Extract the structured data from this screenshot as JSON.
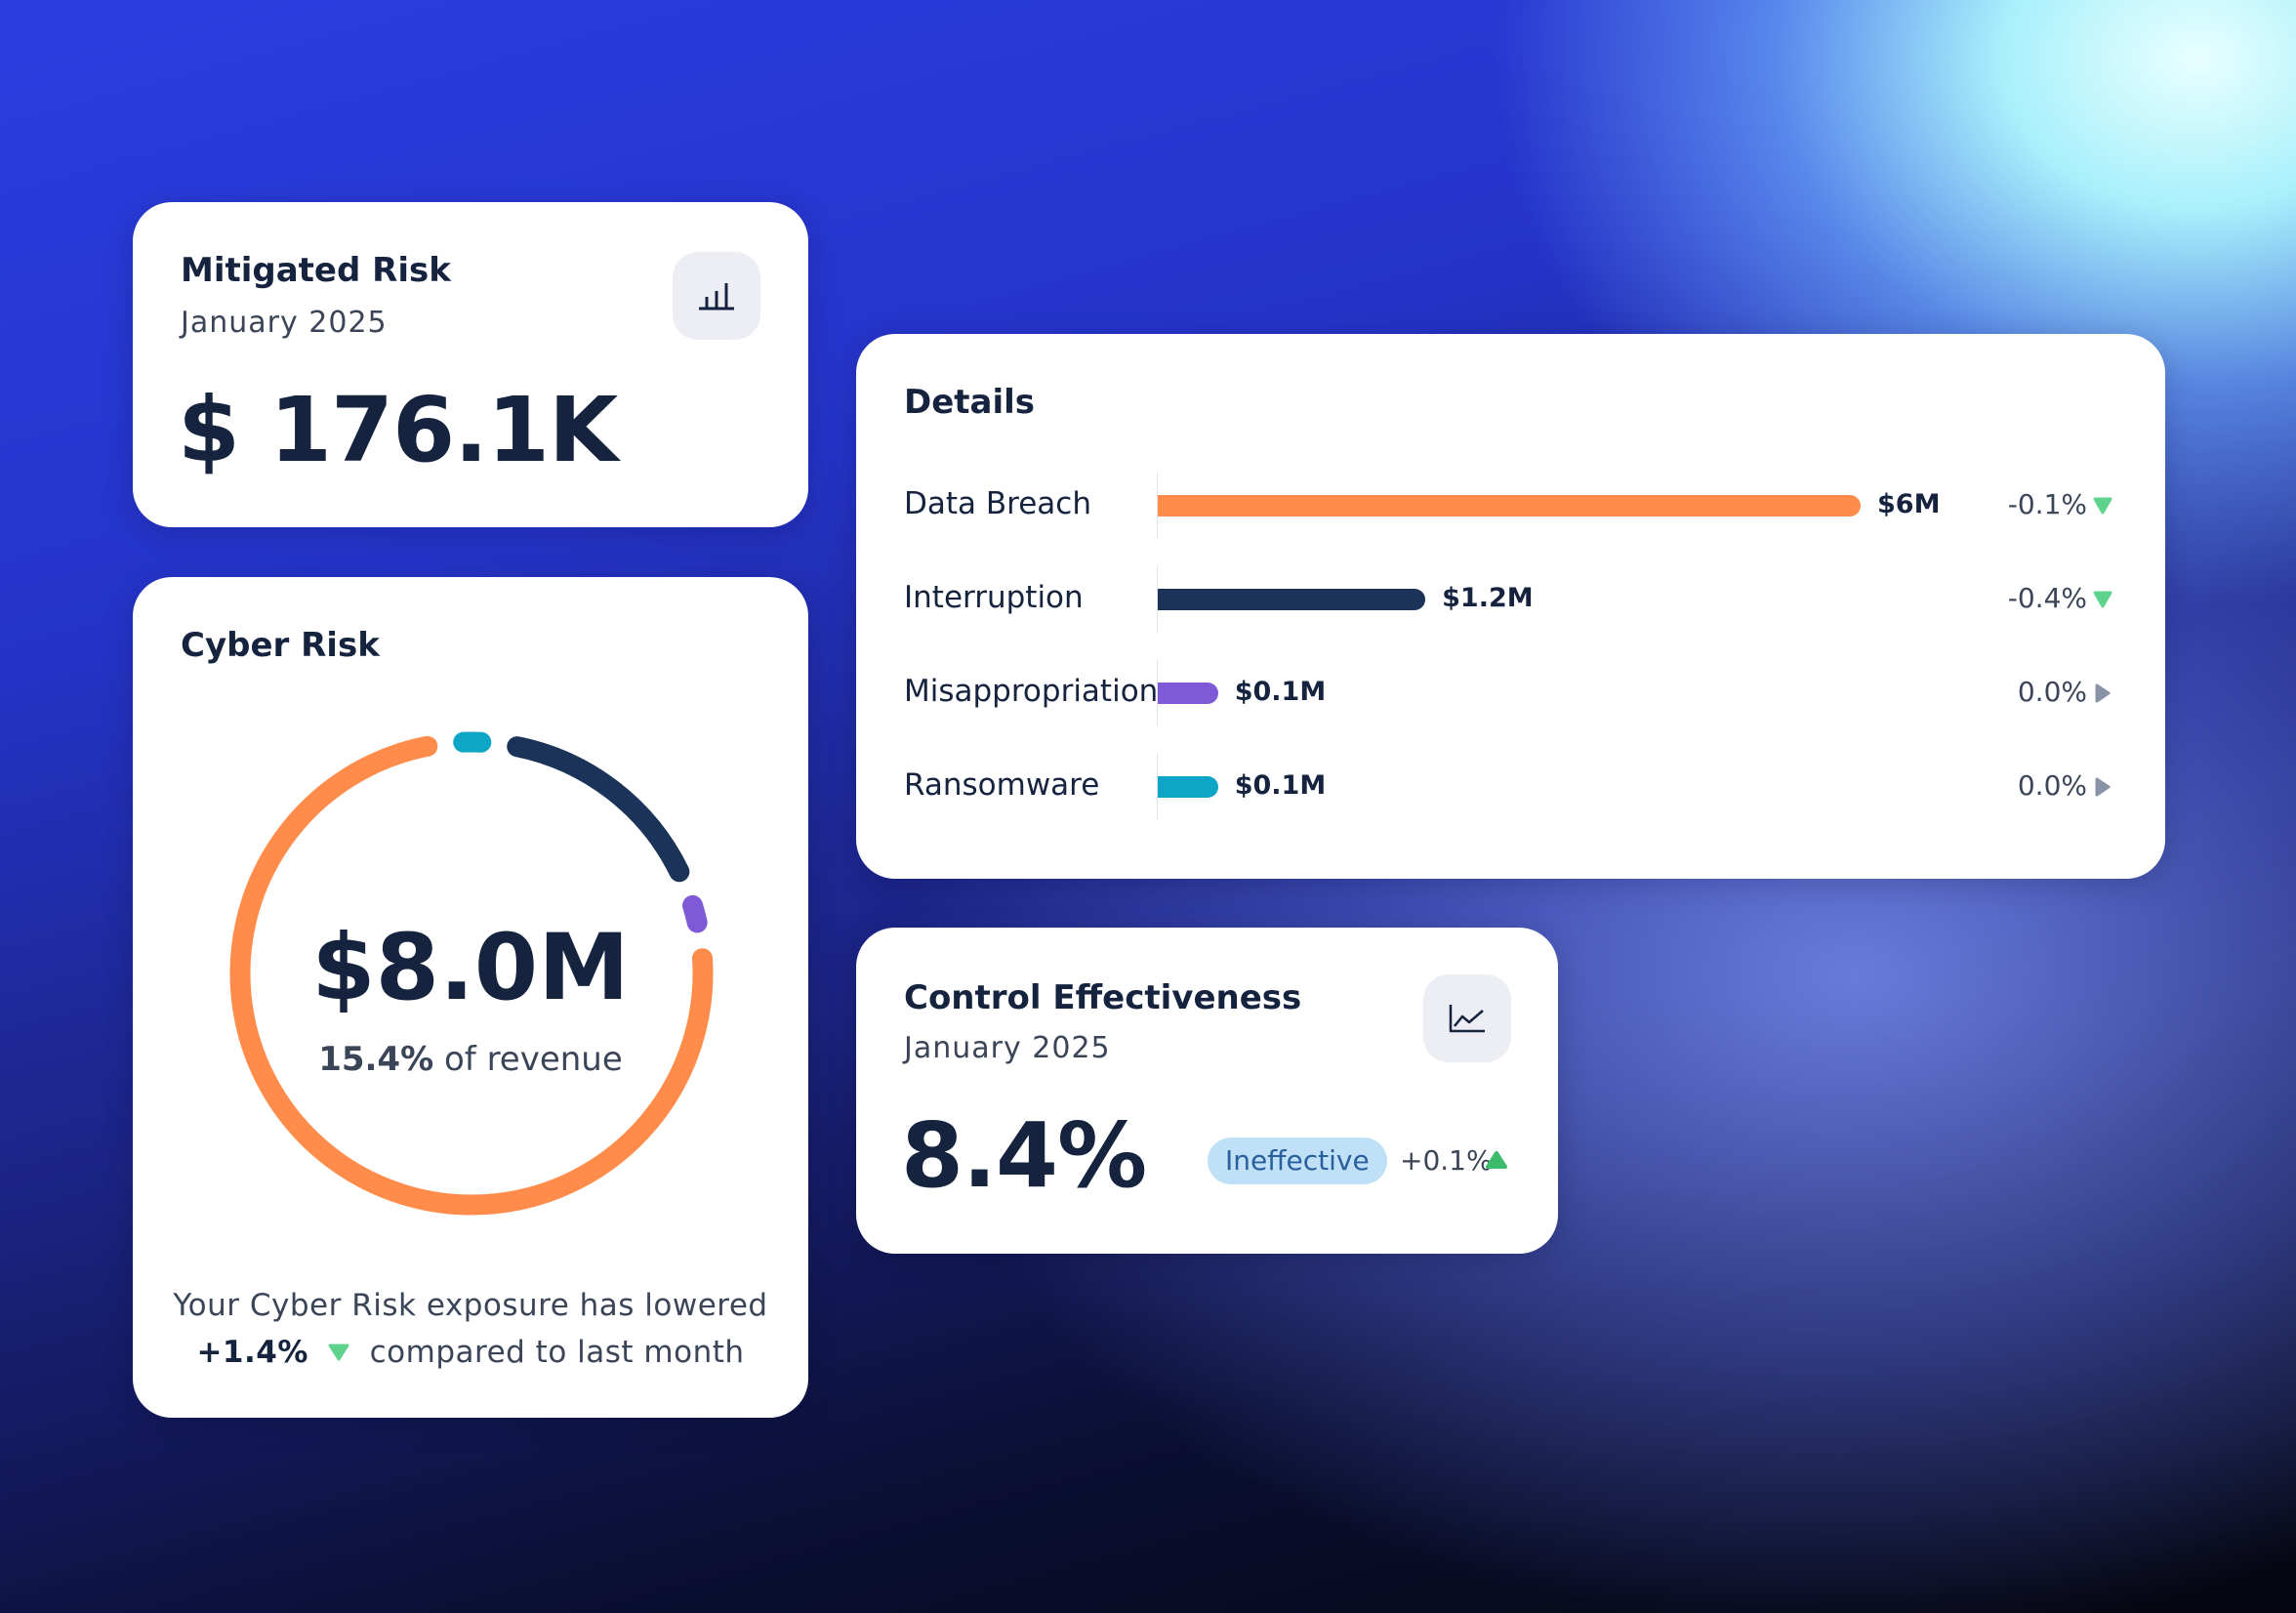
{
  "mitigated_risk": {
    "title": "Mitigated Risk",
    "subtitle": "January 2025",
    "value": "$ 176.1K",
    "icon": "bar-chart-icon"
  },
  "cyber_risk": {
    "title": "Cyber Risk",
    "total": "$8.0M",
    "percent_of_revenue": "15.4%",
    "of_revenue_label": "of revenue",
    "footer_line1": "Your Cyber Risk exposure has lowered",
    "footer_change": "+1.4%",
    "footer_line2": "compared to last month",
    "footer_trend_color": "#5fd38d"
  },
  "details": {
    "title": "Details",
    "rows": [
      {
        "label": "Data Breach",
        "value_label": "$6M",
        "value": 6.0,
        "color": "#ff8c4a",
        "change": "-0.1%",
        "trend": "down",
        "trend_color": "#5fd38d"
      },
      {
        "label": "Interruption",
        "value_label": "$1.2M",
        "value": 1.2,
        "color": "#1b3358",
        "change": "-0.4%",
        "trend": "down",
        "trend_color": "#5fd38d"
      },
      {
        "label": "Misappropriation",
        "value_label": "$0.1M",
        "value": 0.1,
        "color": "#7f5ad6",
        "change": "0.0%",
        "trend": "flat",
        "trend_color": "#8a93a6"
      },
      {
        "label": "Ransomware",
        "value_label": "$0.1M",
        "value": 0.1,
        "color": "#0ea5c6",
        "change": "0.0%",
        "trend": "flat",
        "trend_color": "#8a93a6"
      }
    ]
  },
  "control_effectiveness": {
    "title": "Control Effectiveness",
    "subtitle": "January 2025",
    "value": "8.4%",
    "badge": "Ineffective",
    "change": "+0.1%",
    "trend": "up",
    "trend_color": "#3dbb6c",
    "icon": "line-chart-icon"
  }
}
